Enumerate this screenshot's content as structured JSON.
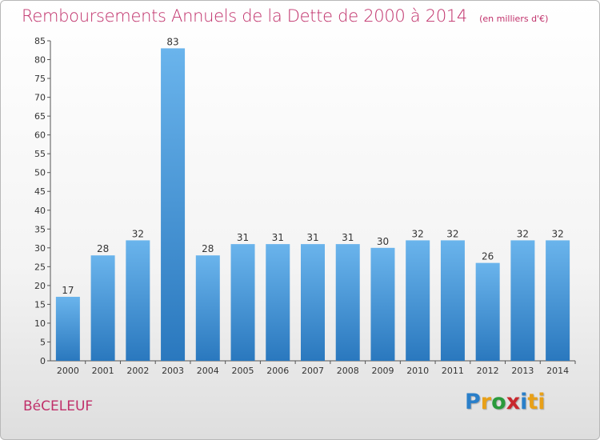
{
  "title": "Remboursements Annuels de la Dette de 2000 à 2014",
  "subtitle": "(en milliers d'€)",
  "commune": "BéCELEUF",
  "logo": {
    "letters": [
      "P",
      "r",
      "o",
      "x",
      "i",
      "ti"
    ]
  },
  "colors": {
    "title": "#c0306a",
    "bar_light": "#6ab4ec",
    "bar_dark": "#2a78be"
  },
  "chart_data": {
    "type": "bar",
    "categories": [
      "2000",
      "2001",
      "2002",
      "2003",
      "2004",
      "2005",
      "2006",
      "2007",
      "2008",
      "2009",
      "2010",
      "2011",
      "2012",
      "2013",
      "2014"
    ],
    "values": [
      17,
      28,
      32,
      83,
      28,
      31,
      31,
      31,
      31,
      30,
      32,
      32,
      26,
      32,
      32
    ],
    "ylim": [
      0,
      85
    ],
    "yticks": [
      0,
      5,
      10,
      15,
      20,
      25,
      30,
      35,
      40,
      45,
      50,
      55,
      60,
      65,
      70,
      75,
      80,
      85
    ],
    "grid": false,
    "legend": "none"
  }
}
